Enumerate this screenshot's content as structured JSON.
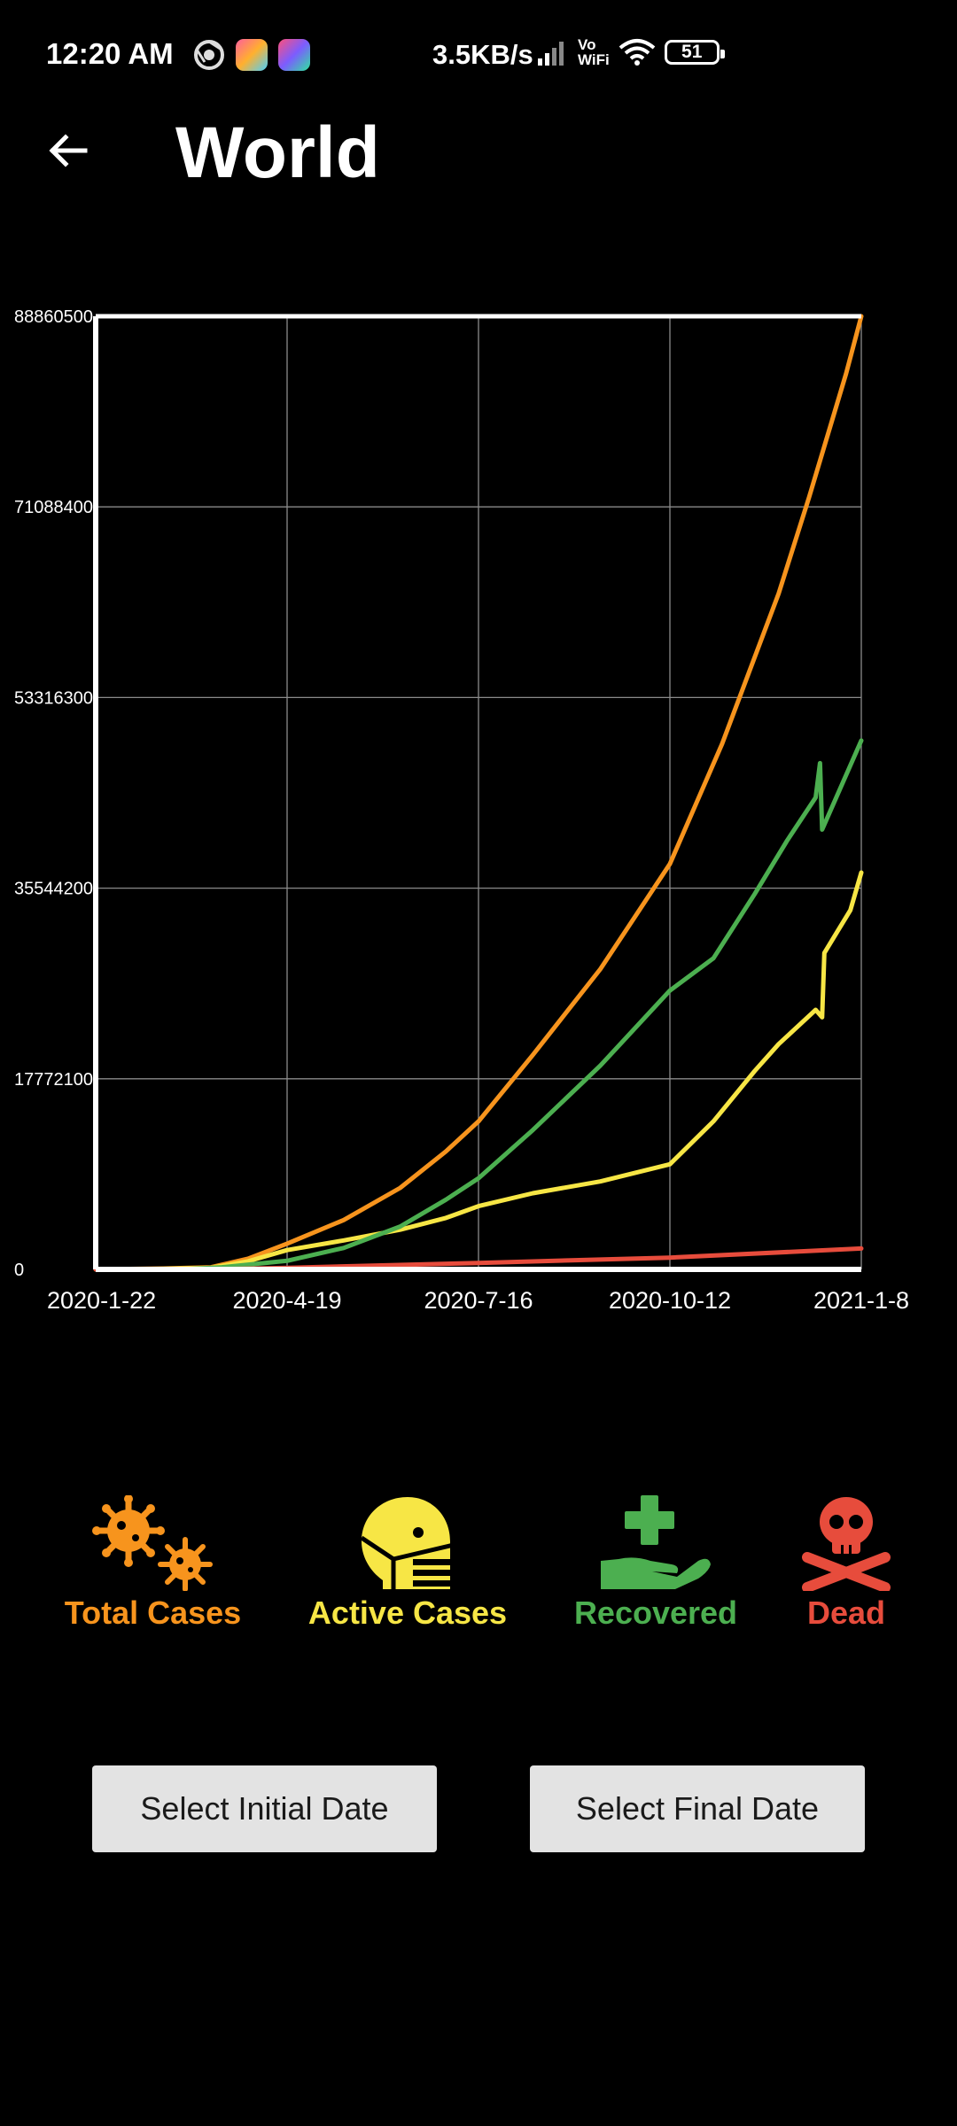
{
  "status_bar": {
    "time": "12:20 AM",
    "speed": "3.5KB/s",
    "volte_top": "Vo",
    "volte_bottom": "WiFi",
    "battery": "51"
  },
  "header": {
    "title": "World",
    "back_icon": "arrow-left-icon"
  },
  "chart_data": {
    "type": "line",
    "x_labels": [
      "2020-1-22",
      "2020-4-19",
      "2020-7-16",
      "2020-10-12",
      "2021-1-8"
    ],
    "x_range": [
      "2020-01-22",
      "2021-01-08"
    ],
    "y_ticks": [
      0,
      17772100,
      35544200,
      53316300,
      71088400,
      88860500
    ],
    "ylim": [
      0,
      88860500
    ],
    "grid": true,
    "series": [
      {
        "name": "Total Cases",
        "color": "#f7941d",
        "points": [
          [
            "2020-01-22",
            0
          ],
          [
            "2020-02-22",
            80000
          ],
          [
            "2020-03-15",
            200000
          ],
          [
            "2020-04-01",
            1000000
          ],
          [
            "2020-04-19",
            2400000
          ],
          [
            "2020-05-15",
            4600000
          ],
          [
            "2020-06-10",
            7600000
          ],
          [
            "2020-07-01",
            11000000
          ],
          [
            "2020-07-16",
            13800000
          ],
          [
            "2020-08-10",
            20000000
          ],
          [
            "2020-09-10",
            28000000
          ],
          [
            "2020-10-12",
            37800000
          ],
          [
            "2020-11-05",
            49000000
          ],
          [
            "2020-12-01",
            63000000
          ],
          [
            "2020-12-15",
            72000000
          ],
          [
            "2021-01-01",
            83500000
          ],
          [
            "2021-01-08",
            88860500
          ]
        ]
      },
      {
        "name": "Active Cases",
        "color": "#f7e645",
        "points": [
          [
            "2020-01-22",
            0
          ],
          [
            "2020-02-22",
            50000
          ],
          [
            "2020-03-15",
            150000
          ],
          [
            "2020-04-01",
            750000
          ],
          [
            "2020-04-19",
            1800000
          ],
          [
            "2020-05-15",
            2700000
          ],
          [
            "2020-06-10",
            3700000
          ],
          [
            "2020-07-01",
            4800000
          ],
          [
            "2020-07-16",
            5900000
          ],
          [
            "2020-08-10",
            7100000
          ],
          [
            "2020-09-10",
            8200000
          ],
          [
            "2020-10-12",
            9800000
          ],
          [
            "2020-11-01",
            13800000
          ],
          [
            "2020-11-20",
            18500000
          ],
          [
            "2020-12-01",
            21000000
          ],
          [
            "2020-12-18",
            24200000
          ],
          [
            "2020-12-21",
            23500000
          ],
          [
            "2020-12-22",
            29500000
          ],
          [
            "2020-12-28",
            31500000
          ],
          [
            "2021-01-03",
            33500000
          ],
          [
            "2021-01-08",
            37000000
          ]
        ]
      },
      {
        "name": "Recovered",
        "color": "#4caf50",
        "points": [
          [
            "2020-01-22",
            0
          ],
          [
            "2020-03-01",
            0
          ],
          [
            "2020-03-20",
            200000
          ],
          [
            "2020-04-19",
            800000
          ],
          [
            "2020-05-15",
            2000000
          ],
          [
            "2020-06-10",
            4000000
          ],
          [
            "2020-07-01",
            6500000
          ],
          [
            "2020-07-16",
            8500000
          ],
          [
            "2020-08-10",
            13000000
          ],
          [
            "2020-09-10",
            19000000
          ],
          [
            "2020-10-12",
            26000000
          ],
          [
            "2020-11-01",
            29000000
          ],
          [
            "2020-11-20",
            35000000
          ],
          [
            "2020-12-05",
            40000000
          ],
          [
            "2020-12-18",
            44000000
          ],
          [
            "2020-12-20",
            47200000
          ],
          [
            "2020-12-21",
            41000000
          ],
          [
            "2021-01-08",
            49300000
          ]
        ]
      },
      {
        "name": "Dead",
        "color": "#e74c3c",
        "points": [
          [
            "2020-01-22",
            0
          ],
          [
            "2020-03-15",
            10000
          ],
          [
            "2020-04-19",
            150000
          ],
          [
            "2020-07-16",
            600000
          ],
          [
            "2020-10-12",
            1100000
          ],
          [
            "2021-01-08",
            1950000
          ]
        ]
      }
    ]
  },
  "legend": {
    "total": {
      "label": "Total Cases",
      "color": "#f7941d",
      "icon": "virus-icon"
    },
    "active": {
      "label": "Active Cases",
      "color": "#f7e645",
      "icon": "masked-face-icon"
    },
    "recovered": {
      "label": "Recovered",
      "color": "#4caf50",
      "icon": "hand-holding-medical-icon"
    },
    "dead": {
      "label": "Dead",
      "color": "#e74c3c",
      "icon": "skull-crossbones-icon"
    }
  },
  "buttons": {
    "initial_date": "Select Initial Date",
    "final_date": "Select Final Date"
  }
}
